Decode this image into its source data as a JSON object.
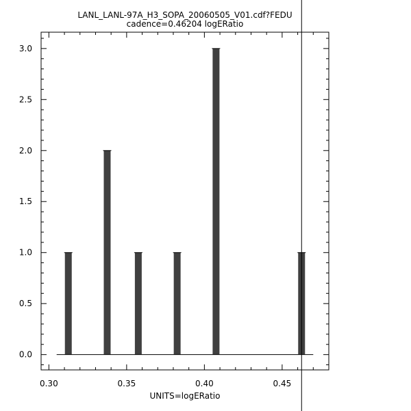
{
  "chart_data": {
    "type": "bar",
    "title": "LANL_LANL-97A_H3_SOPA_20060505_V01.cdf?FEDU",
    "subtitle": "cadence=0.46204 logERatio",
    "xlabel": "UNITS=logERatio",
    "ylabel": "",
    "xlim": [
      0.295,
      0.48
    ],
    "ylim": [
      -0.15,
      3.16
    ],
    "x_ticks": [
      "0.30",
      "0.35",
      "0.40",
      "0.45"
    ],
    "x_tick_values": [
      0.3,
      0.35,
      0.4,
      0.45
    ],
    "y_ticks": [
      "0.0",
      "0.5",
      "1.0",
      "1.5",
      "2.0",
      "2.5",
      "3.0"
    ],
    "y_tick_values": [
      0.0,
      0.5,
      1.0,
      1.5,
      2.0,
      2.5,
      3.0
    ],
    "bars": [
      {
        "x": 0.3125,
        "y": 1
      },
      {
        "x": 0.3375,
        "y": 2
      },
      {
        "x": 0.3575,
        "y": 1
      },
      {
        "x": 0.3825,
        "y": 1
      },
      {
        "x": 0.4075,
        "y": 3
      },
      {
        "x": 0.4625,
        "y": 1
      }
    ],
    "baseline_range": [
      0.305,
      0.47
    ],
    "cursor_x": 0.4625,
    "grid": false,
    "legend": "none",
    "bar_color": "#404040"
  }
}
